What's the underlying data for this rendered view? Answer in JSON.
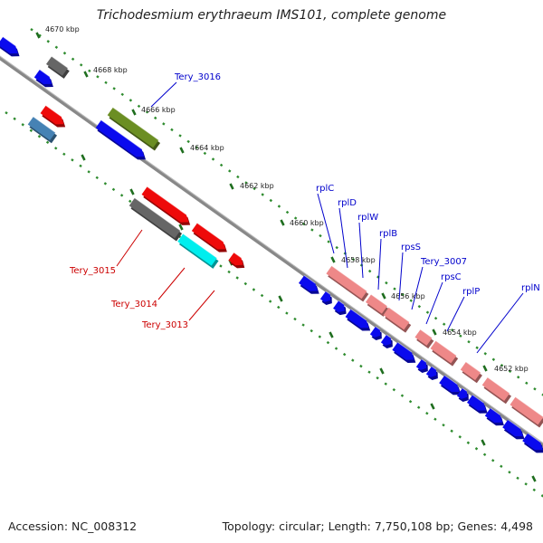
{
  "title": "Trichodesmium erythraeum IMS101, complete genome",
  "footer": {
    "accession": "Accession: NC_008312",
    "summary": "Topology: circular; Length: 7,750,108 bp; Genes: 4,498"
  },
  "colors": {
    "forward_gene": "#0a0aee",
    "reverse_gene": "#ee0a0a",
    "ribosomal": "#ee8888",
    "olive": "#6b8e23",
    "gray": "#666666",
    "cyan": "#00eeee",
    "steel": "#4682b4",
    "backbone": "#888888",
    "tick": "#2e8b2e",
    "label_blue": "#0000cc",
    "label_red": "#cc0000"
  },
  "ticks": [
    {
      "label": "4670 kbp"
    },
    {
      "label": "4668 kbp"
    },
    {
      "label": "4666 kbp"
    },
    {
      "label": "4664 kbp"
    },
    {
      "label": "4662 kbp"
    },
    {
      "label": "4660 kbp"
    },
    {
      "label": "4658 kbp"
    },
    {
      "label": "4656 kbp"
    },
    {
      "label": "4654 kbp"
    },
    {
      "label": "4652 kbp"
    }
  ],
  "gene_labels": [
    {
      "text": "Tery_3016",
      "color": "blue"
    },
    {
      "text": "Tery_3015",
      "color": "red"
    },
    {
      "text": "Tery_3014",
      "color": "red"
    },
    {
      "text": "Tery_3013",
      "color": "red"
    },
    {
      "text": "rplC",
      "color": "blue"
    },
    {
      "text": "rplD",
      "color": "blue"
    },
    {
      "text": "rplW",
      "color": "blue"
    },
    {
      "text": "rplB",
      "color": "blue"
    },
    {
      "text": "rpsS",
      "color": "blue"
    },
    {
      "text": "Tery_3007",
      "color": "blue"
    },
    {
      "text": "rpsC",
      "color": "blue"
    },
    {
      "text": "rplP",
      "color": "blue"
    },
    {
      "text": "rplN",
      "color": "blue"
    }
  ]
}
